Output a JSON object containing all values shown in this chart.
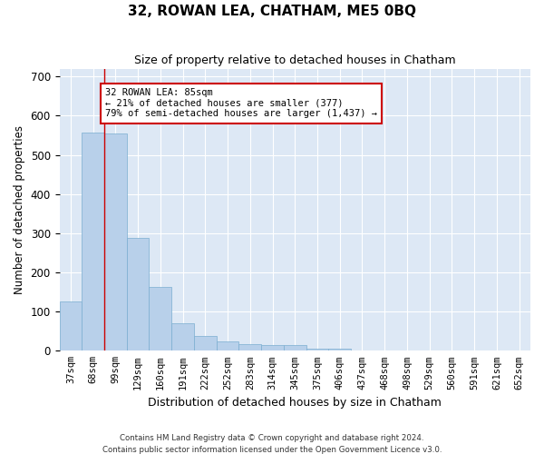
{
  "title": "32, ROWAN LEA, CHATHAM, ME5 0BQ",
  "subtitle": "Size of property relative to detached houses in Chatham",
  "xlabel": "Distribution of detached houses by size in Chatham",
  "ylabel": "Number of detached properties",
  "footnote1": "Contains HM Land Registry data © Crown copyright and database right 2024.",
  "footnote2": "Contains public sector information licensed under the Open Government Licence v3.0.",
  "categories": [
    "37sqm",
    "68sqm",
    "99sqm",
    "129sqm",
    "160sqm",
    "191sqm",
    "222sqm",
    "252sqm",
    "283sqm",
    "314sqm",
    "345sqm",
    "375sqm",
    "406sqm",
    "437sqm",
    "468sqm",
    "498sqm",
    "529sqm",
    "560sqm",
    "591sqm",
    "621sqm",
    "652sqm"
  ],
  "values": [
    125,
    557,
    555,
    287,
    163,
    70,
    38,
    25,
    18,
    15,
    15,
    5,
    5,
    0,
    0,
    0,
    0,
    0,
    0,
    0,
    0
  ],
  "bar_color": "#b8d0ea",
  "bar_edge_color": "#7aaed0",
  "bg_color": "#ffffff",
  "plot_bg_color": "#dde8f5",
  "grid_color": "#ffffff",
  "annotation_text": "32 ROWAN LEA: 85sqm\n← 21% of detached houses are smaller (377)\n79% of semi-detached houses are larger (1,437) →",
  "annotation_box_color": "#ffffff",
  "annotation_box_edge": "#cc0000",
  "property_line_x": 1.5,
  "ylim": [
    0,
    720
  ],
  "yticks": [
    0,
    100,
    200,
    300,
    400,
    500,
    600,
    700
  ]
}
